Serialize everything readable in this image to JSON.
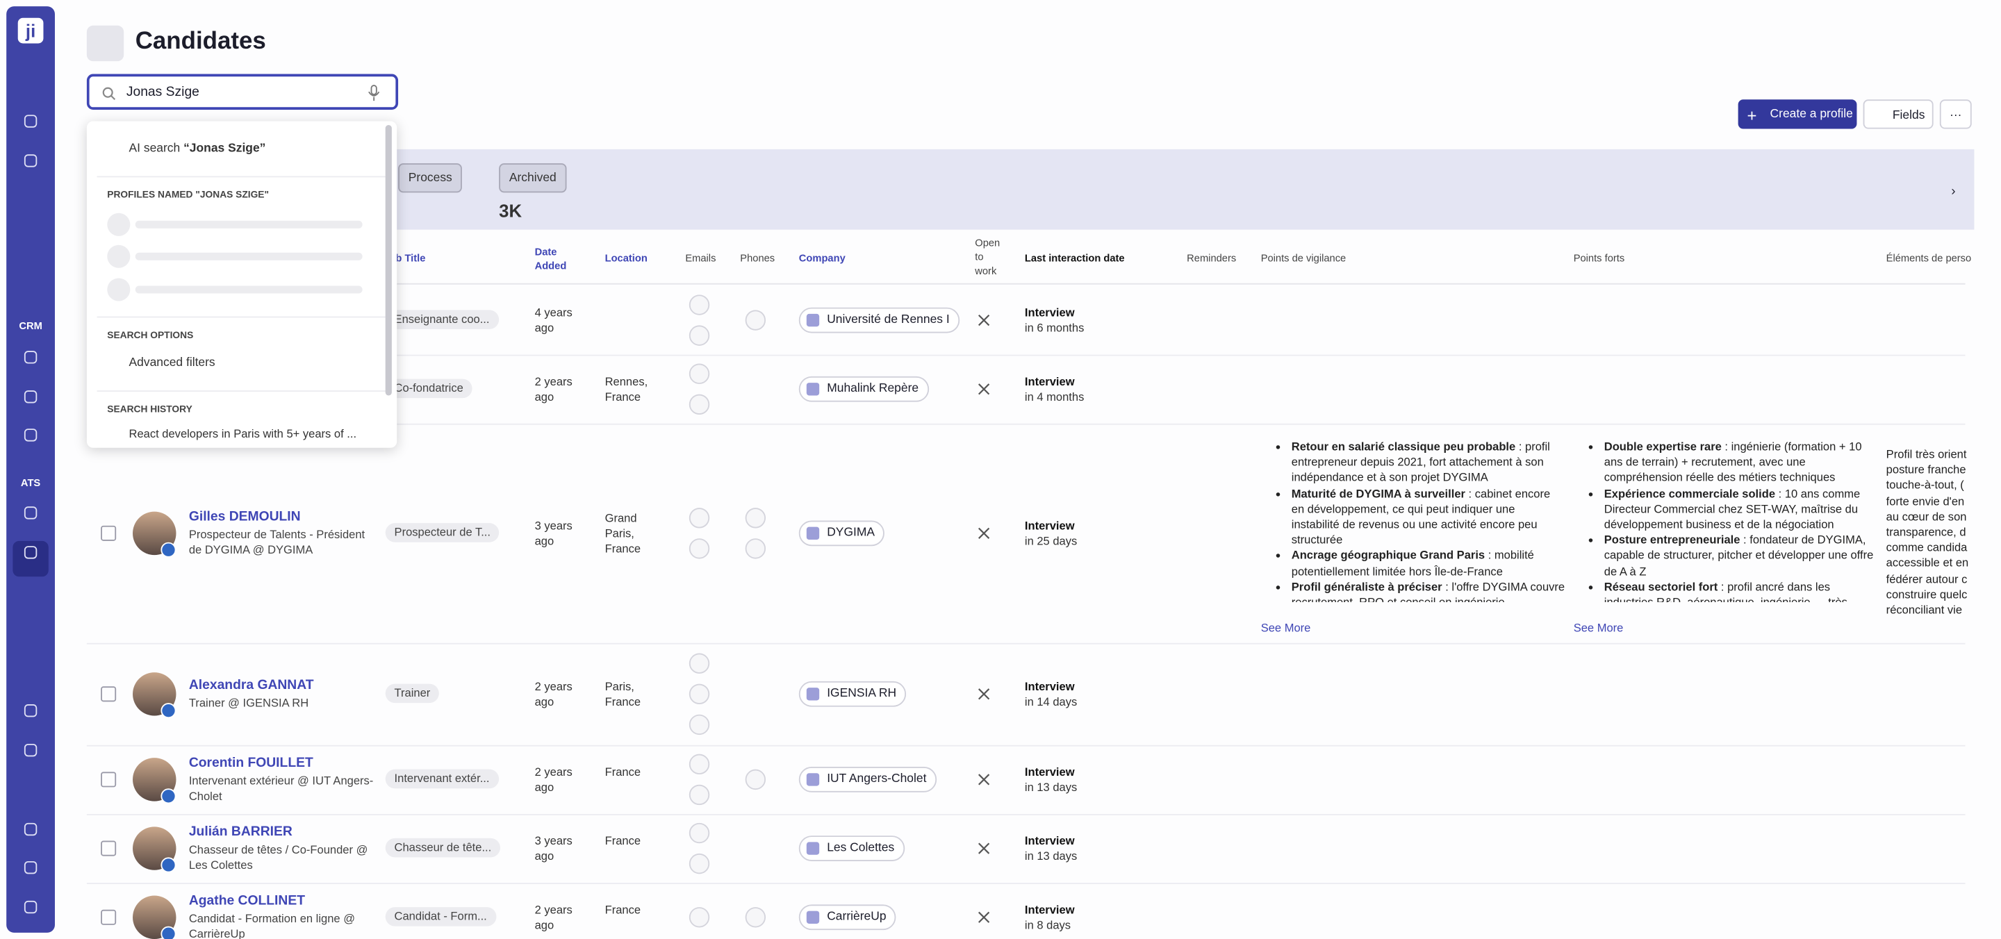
{
  "sidebar": {
    "logo": "ji",
    "crm_label": "CRM",
    "ats_label": "ATS"
  },
  "header": {
    "title": "Candidates"
  },
  "search": {
    "value": "Jonas Szige"
  },
  "dropdown": {
    "ai_search_label": "AI search",
    "ai_search_query": "“Jonas Szige”",
    "profiles_heading": "PROFILES NAMED \"JONAS SZIGE\"",
    "options_heading": "SEARCH OPTIONS",
    "advanced_filters": "Advanced filters",
    "history_heading": "SEARCH HISTORY",
    "history_items": [
      "React developers in Paris with 5+ years of ..."
    ]
  },
  "toolbar": {
    "create_profile": "Create a profile",
    "fields": "Fields"
  },
  "banner": {
    "tabs": [
      "Process",
      "Archived"
    ],
    "count": "3K"
  },
  "table": {
    "columns": [
      "b Title",
      "Date Added",
      "Location",
      "Emails",
      "Phones",
      "Company",
      "Open to work",
      "Last interaction date",
      "Reminders",
      "Points de vigilance",
      "Points forts",
      "Éléments de perso"
    ],
    "rows": [
      {
        "job_title": "Enseignante coo...",
        "date_added": "4 years ago",
        "company": "Université de Rennes I",
        "interaction": "Interview",
        "interaction_when": "in 6 months"
      },
      {
        "job_title": "Co-fondatrice",
        "date_added": "2 years ago",
        "location": "Rennes, France",
        "company": "Muhalink Repère",
        "interaction": "Interview",
        "interaction_when": "in 4 months"
      },
      {
        "name": "Gilles DEMOULIN",
        "headline": "Prospecteur de Talents - Président de DYGIMA @ DYGIMA",
        "job_title": "Prospecteur de T...",
        "date_added": "3 years ago",
        "location": "Grand Paris, France",
        "company": "DYGIMA",
        "interaction": "Interview",
        "interaction_when": "in 25 days",
        "vigilance": [
          {
            "bold": "Retour en salarié classique peu probable",
            "text": " : profil entrepreneur depuis 2021, fort attachement à son indépendance et à son projet DYGIMA"
          },
          {
            "bold": "Maturité de DYGIMA à surveiller",
            "text": " : cabinet encore en développement, ce qui peut indiquer une instabilité de revenus ou une activité encore peu structurée"
          },
          {
            "bold": "Ancrage géographique Grand Paris",
            "text": " : mobilité potentiellement limitée hors Île-de-France"
          },
          {
            "bold": "Profil généraliste à préciser",
            "text": " : l'offre DYGIMA couvre recrutement, RPO et conseil en ingénierie"
          }
        ],
        "forts": [
          {
            "bold": "Double expertise rare",
            "text": " : ingénierie (formation + 10 ans de terrain) + recrutement, avec une compréhension réelle des métiers techniques"
          },
          {
            "bold": "Expérience commerciale solide",
            "text": " : 10 ans comme Directeur Commercial chez SET-WAY, maîtrise du développement business et de la négociation"
          },
          {
            "bold": "Posture entrepreneuriale",
            "text": " : fondateur de DYGIMA, capable de structurer, pitcher et développer une offre de A à Z"
          },
          {
            "bold": "Réseau sectoriel fort",
            "text": " : profil ancré dans les industries R&D, aéronautique, ingénierie — très"
          }
        ],
        "see_more": "See More",
        "perso": [
          "Profil très orient",
          "posture franche",
          "touche-à-tout, (",
          "forte envie d'en",
          "au cœur de son",
          "transparence, d",
          "comme candida",
          "accessible et en",
          "fédérer autour c",
          "construire quelc",
          "réconciliant vie"
        ]
      },
      {
        "name": "Alexandra GANNAT",
        "headline": "Trainer @ IGENSIA RH",
        "job_title": "Trainer",
        "date_added": "2 years ago",
        "location": "Paris, France",
        "company": "IGENSIA RH",
        "interaction": "Interview",
        "interaction_when": "in 14 days"
      },
      {
        "name": "Corentin FOUILLET",
        "headline": "Intervenant extérieur @ IUT Angers-Cholet",
        "job_title": "Intervenant extér...",
        "date_added": "2 years ago",
        "location": "France",
        "company": "IUT Angers-Cholet",
        "interaction": "Interview",
        "interaction_when": "in 13 days"
      },
      {
        "name": "Julián BARRIER",
        "headline": "Chasseur de têtes / Co-Founder @ Les Colettes",
        "job_title": "Chasseur de tête...",
        "date_added": "3 years ago",
        "location": "France",
        "company": "Les Colettes",
        "interaction": "Interview",
        "interaction_when": "in 13 days"
      },
      {
        "name": "Agathe COLLINET",
        "headline": "Candidat - Formation en ligne @ CarrièreUp",
        "job_title": "Candidat - Form...",
        "date_added": "2 years ago",
        "location": "France",
        "company": "CarrièreUp",
        "interaction": "Interview",
        "interaction_when": "in 8 days"
      }
    ]
  }
}
